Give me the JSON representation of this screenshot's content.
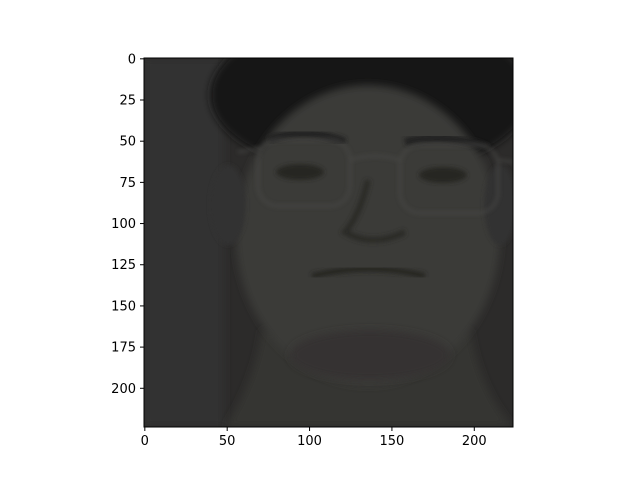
{
  "chart_data": {
    "type": "image",
    "title": "",
    "xlabel": "",
    "ylabel": "",
    "xlim": [
      -0.5,
      223.5
    ],
    "ylim": [
      223.5,
      -0.5
    ],
    "y_axis_inverted": true,
    "x_ticks": [
      0,
      50,
      100,
      150,
      200
    ],
    "y_ticks": [
      0,
      25,
      50,
      75,
      100,
      125,
      150,
      175,
      200
    ],
    "x_tick_labels": [
      "0",
      "50",
      "100",
      "150",
      "200"
    ],
    "y_tick_labels": [
      "0",
      "25",
      "50",
      "75",
      "100",
      "125",
      "150",
      "175",
      "200"
    ],
    "image_content": "darkened grayscale portrait photo",
    "colors": {
      "background": "#2c2b2a",
      "hair": "#181716",
      "skin": "#3b3a38",
      "skin_shadow": "#2f2e2d",
      "axis": "#000000"
    }
  }
}
